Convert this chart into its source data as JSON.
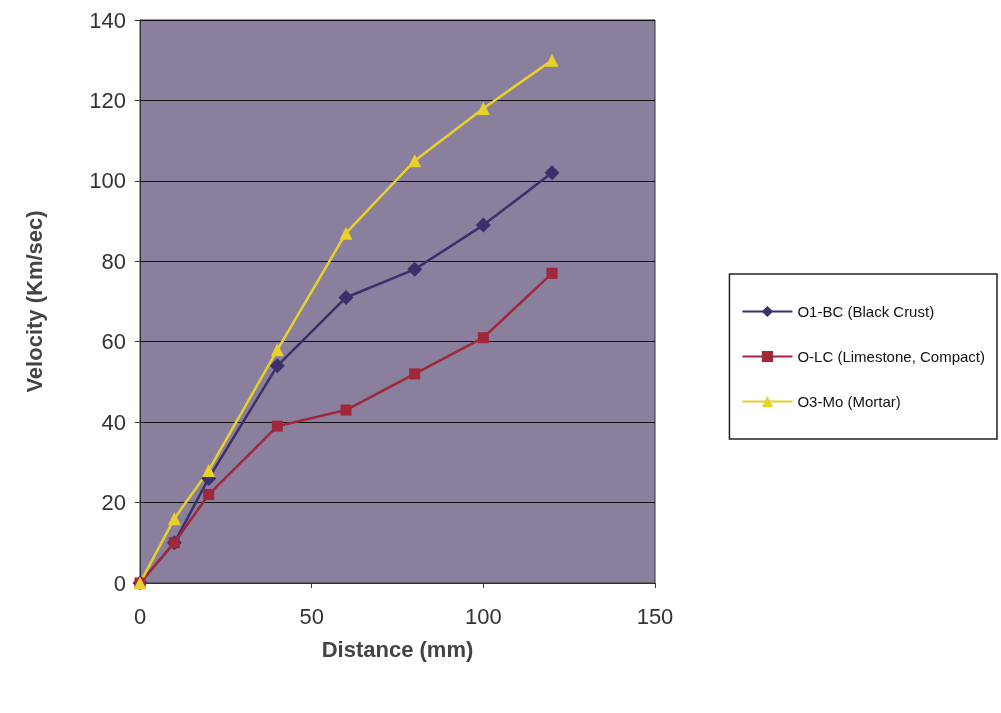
{
  "chart_data": {
    "type": "line",
    "xlabel": "Distance (mm)",
    "ylabel": "Velocity (Km/sec)",
    "x": [
      0,
      10,
      20,
      40,
      60,
      80,
      100,
      120
    ],
    "series": [
      {
        "name": "O1-BC (Black Crust)",
        "color": "#3c2f6e",
        "marker": "diamond",
        "values": [
          0,
          10,
          26,
          54,
          71,
          78,
          89,
          102
        ]
      },
      {
        "name": "O-LC (Limestone, Compact)",
        "color": "#a0283a",
        "marker": "square",
        "values": [
          0,
          10,
          22,
          39,
          43,
          52,
          61,
          77
        ]
      },
      {
        "name": "O3-Mo (Mortar)",
        "color": "#e8d22a",
        "marker": "triangle",
        "values": [
          0,
          16,
          28,
          58,
          87,
          105,
          118,
          130
        ]
      }
    ],
    "xlim": [
      0,
      150
    ],
    "xticks": [
      0,
      50,
      100,
      150
    ],
    "ylim": [
      0,
      140
    ],
    "yticks": [
      0,
      20,
      40,
      60,
      80,
      100,
      120,
      140
    ],
    "grid": "y",
    "legend": "right"
  }
}
